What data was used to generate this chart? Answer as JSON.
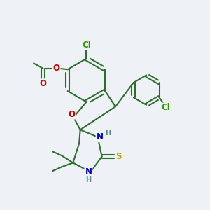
{
  "bg_color": "#eef2f7",
  "bond_color": "#2d6e2d",
  "bond_width": 1.5,
  "atom_colors": {
    "C": "#2d6e2d",
    "Cl": "#2d9900",
    "O": "#cc0000",
    "N": "#0000cc",
    "S": "#aaaa00",
    "H": "#558888"
  },
  "font_size": 8.5
}
